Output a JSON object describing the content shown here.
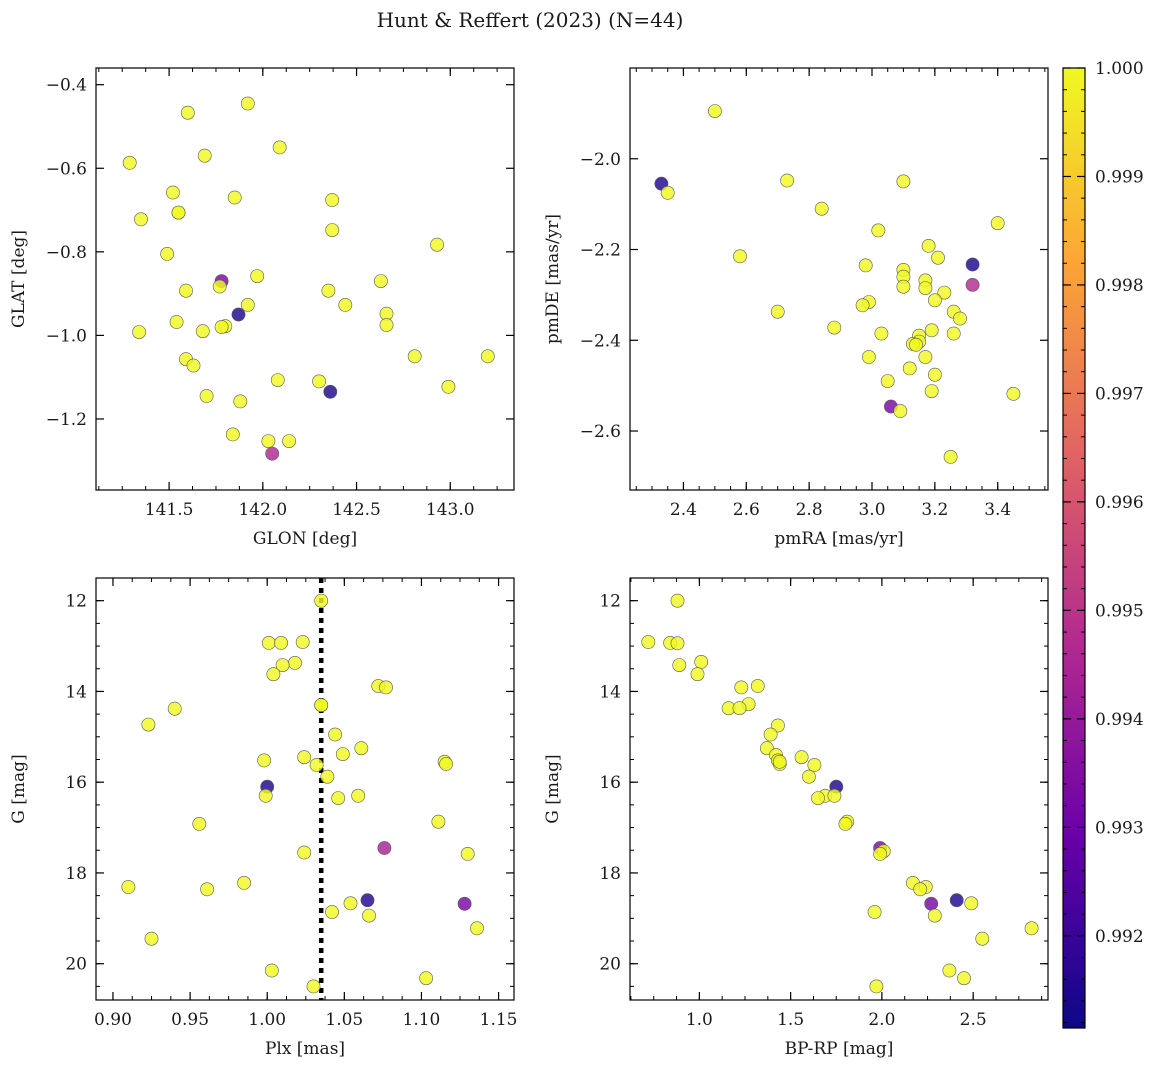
{
  "figure": {
    "title": "Hunt & Reffert (2023) (N=44)"
  },
  "colorbar": {
    "min": 0.99115,
    "max": 1.0,
    "ticks": [
      "0.992",
      "0.993",
      "0.994",
      "0.995",
      "0.996",
      "0.997",
      "0.998",
      "0.999",
      "1.000"
    ],
    "tick_values": [
      0.992,
      0.993,
      0.994,
      0.995,
      0.996,
      0.997,
      0.998,
      0.999,
      1.0
    ],
    "colormap": "plasma",
    "colors": [
      "#0d0887",
      "#6a00a8",
      "#b12a90",
      "#e16462",
      "#fca636",
      "#f0f921"
    ]
  },
  "chart_data": [
    {
      "type": "scatter",
      "xlabel": "GLON [deg]",
      "ylabel": "GLAT [deg]",
      "xlim": [
        141.11,
        143.34
      ],
      "ylim": [
        -1.37,
        -0.36
      ],
      "xticks": [
        141.5,
        142.0,
        142.5,
        143.0
      ],
      "xtick_labels": [
        "141.5",
        "142.0",
        "142.5",
        "143.0"
      ],
      "yticks": [
        -0.4,
        -0.6,
        -0.8,
        -1.0,
        -1.2
      ],
      "ytick_labels": [
        "−0.4",
        "−0.6",
        "−0.8",
        "−1.0",
        "−1.2"
      ],
      "points": [
        [
          141.92,
          -0.445,
          1.0
        ],
        [
          141.6,
          -0.467,
          1.0
        ],
        [
          142.09,
          -0.55,
          1.0
        ],
        [
          141.69,
          -0.57,
          1.0
        ],
        [
          141.29,
          -0.587,
          1.0
        ],
        [
          141.52,
          -0.658,
          1.0
        ],
        [
          141.85,
          -0.67,
          1.0
        ],
        [
          142.37,
          -0.676,
          1.0
        ],
        [
          141.55,
          -0.706,
          1.0
        ],
        [
          141.55,
          -0.706,
          1.0
        ],
        [
          141.35,
          -0.722,
          1.0
        ],
        [
          142.37,
          -0.748,
          1.0
        ],
        [
          141.49,
          -0.805,
          1.0
        ],
        [
          142.93,
          -0.783,
          1.0
        ],
        [
          141.97,
          -0.858,
          1.0
        ],
        [
          142.63,
          -0.87,
          1.0
        ],
        [
          141.78,
          -0.87,
          0.9933
        ],
        [
          141.77,
          -0.883,
          1.0
        ],
        [
          141.59,
          -0.893,
          1.0
        ],
        [
          142.35,
          -0.893,
          1.0
        ],
        [
          141.92,
          -0.927,
          1.0
        ],
        [
          142.44,
          -0.927,
          1.0
        ],
        [
          142.66,
          -0.948,
          1.0
        ],
        [
          141.87,
          -0.95,
          0.9915
        ],
        [
          141.54,
          -0.968,
          1.0
        ],
        [
          142.66,
          -0.975,
          1.0
        ],
        [
          141.8,
          -0.978,
          1.0
        ],
        [
          141.78,
          -0.98,
          1.0
        ],
        [
          141.68,
          -0.99,
          1.0
        ],
        [
          141.34,
          -0.992,
          1.0
        ],
        [
          141.59,
          -1.057,
          1.0
        ],
        [
          142.81,
          -1.05,
          1.0
        ],
        [
          143.2,
          -1.05,
          1.0
        ],
        [
          141.63,
          -1.072,
          1.0
        ],
        [
          142.08,
          -1.107,
          1.0
        ],
        [
          142.3,
          -1.11,
          1.0
        ],
        [
          142.99,
          -1.123,
          1.0
        ],
        [
          142.36,
          -1.135,
          0.9915
        ],
        [
          141.7,
          -1.145,
          1.0
        ],
        [
          141.88,
          -1.158,
          1.0
        ],
        [
          141.84,
          -1.237,
          1.0
        ],
        [
          142.03,
          -1.253,
          1.0
        ],
        [
          142.14,
          -1.253,
          1.0
        ],
        [
          142.05,
          -1.283,
          0.9946
        ]
      ]
    },
    {
      "type": "scatter",
      "xlabel": "pmRA [mas/yr]",
      "ylabel": "pmDE [mas/yr]",
      "xlim": [
        2.23,
        3.56
      ],
      "ylim": [
        -2.73,
        -1.8
      ],
      "xticks": [
        2.4,
        2.6,
        2.8,
        3.0,
        3.2,
        3.4
      ],
      "xtick_labels": [
        "2.4",
        "2.6",
        "2.8",
        "3.0",
        "3.2",
        "3.4"
      ],
      "yticks": [
        -2.0,
        -2.2,
        -2.4,
        -2.6
      ],
      "ytick_labels": [
        "−2.0",
        "−2.2",
        "−2.4",
        "−2.6"
      ],
      "points": [
        [
          2.5,
          -1.895,
          1.0
        ],
        [
          2.33,
          -2.055,
          0.9915
        ],
        [
          2.35,
          -2.075,
          1.0
        ],
        [
          2.73,
          -2.048,
          1.0
        ],
        [
          3.1,
          -2.05,
          1.0
        ],
        [
          2.84,
          -2.11,
          1.0
        ],
        [
          3.4,
          -2.142,
          1.0
        ],
        [
          3.02,
          -2.158,
          1.0
        ],
        [
          3.18,
          -2.192,
          1.0
        ],
        [
          2.58,
          -2.215,
          1.0
        ],
        [
          3.21,
          -2.218,
          1.0
        ],
        [
          2.98,
          -2.235,
          1.0
        ],
        [
          3.32,
          -2.233,
          0.9915
        ],
        [
          3.1,
          -2.245,
          1.0
        ],
        [
          3.1,
          -2.26,
          1.0
        ],
        [
          3.17,
          -2.268,
          1.0
        ],
        [
          3.32,
          -2.278,
          0.9947
        ],
        [
          3.1,
          -2.282,
          1.0
        ],
        [
          3.17,
          -2.285,
          1.0
        ],
        [
          3.23,
          -2.295,
          1.0
        ],
        [
          3.2,
          -2.312,
          1.0
        ],
        [
          2.99,
          -2.316,
          1.0
        ],
        [
          2.97,
          -2.323,
          1.0
        ],
        [
          3.26,
          -2.337,
          1.0
        ],
        [
          2.7,
          -2.337,
          1.0
        ],
        [
          3.28,
          -2.352,
          1.0
        ],
        [
          2.88,
          -2.372,
          1.0
        ],
        [
          3.19,
          -2.378,
          1.0
        ],
        [
          3.03,
          -2.385,
          1.0
        ],
        [
          3.26,
          -2.385,
          1.0
        ],
        [
          3.15,
          -2.39,
          1.0
        ],
        [
          3.15,
          -2.403,
          1.0
        ],
        [
          3.13,
          -2.408,
          1.0
        ],
        [
          3.14,
          -2.41,
          1.0
        ],
        [
          2.99,
          -2.437,
          1.0
        ],
        [
          3.17,
          -2.437,
          1.0
        ],
        [
          3.12,
          -2.462,
          1.0
        ],
        [
          3.2,
          -2.476,
          1.0
        ],
        [
          3.05,
          -2.49,
          1.0
        ],
        [
          3.19,
          -2.512,
          1.0
        ],
        [
          3.45,
          -2.518,
          1.0
        ],
        [
          3.06,
          -2.546,
          0.9932
        ],
        [
          3.09,
          -2.556,
          1.0
        ],
        [
          3.25,
          -2.657,
          1.0
        ]
      ]
    },
    {
      "type": "scatter",
      "xlabel": "Plx [mas]",
      "ylabel": "G [mag]",
      "xlim": [
        0.889,
        1.16
      ],
      "ylim": [
        20.8,
        11.5
      ],
      "xticks": [
        0.9,
        0.95,
        1.0,
        1.05,
        1.1,
        1.15
      ],
      "xtick_labels": [
        "0.90",
        "0.95",
        "1.00",
        "1.05",
        "1.10",
        "1.15"
      ],
      "yticks": [
        12,
        14,
        16,
        18,
        20
      ],
      "ytick_labels": [
        "12",
        "14",
        "16",
        "18",
        "20"
      ],
      "vline": 1.035,
      "points": [
        [
          1.035,
          12.0,
          1.0
        ],
        [
          1.001,
          12.93,
          1.0
        ],
        [
          1.009,
          12.93,
          1.0
        ],
        [
          1.023,
          12.91,
          1.0
        ],
        [
          1.018,
          13.37,
          1.0
        ],
        [
          1.01,
          13.42,
          1.0
        ],
        [
          1.004,
          13.62,
          1.0
        ],
        [
          1.072,
          13.88,
          1.0
        ],
        [
          1.077,
          13.91,
          1.0
        ],
        [
          1.035,
          14.3,
          1.0
        ],
        [
          0.94,
          14.38,
          1.0
        ],
        [
          0.923,
          14.73,
          1.0
        ],
        [
          1.044,
          14.95,
          1.0
        ],
        [
          1.061,
          15.25,
          1.0
        ],
        [
          1.049,
          15.38,
          1.0
        ],
        [
          0.998,
          15.52,
          1.0
        ],
        [
          1.024,
          15.45,
          1.0
        ],
        [
          1.115,
          15.55,
          1.0
        ],
        [
          1.116,
          15.6,
          1.0
        ],
        [
          1.032,
          15.62,
          1.0
        ],
        [
          1.039,
          15.88,
          1.0
        ],
        [
          1.0,
          16.1,
          0.9915
        ],
        [
          0.999,
          16.3,
          1.0
        ],
        [
          1.046,
          16.35,
          1.0
        ],
        [
          1.059,
          16.3,
          1.0
        ],
        [
          1.111,
          16.87,
          1.0
        ],
        [
          0.956,
          16.92,
          1.0
        ],
        [
          1.076,
          17.45,
          0.9944
        ],
        [
          1.024,
          17.55,
          1.0
        ],
        [
          1.13,
          17.58,
          1.0
        ],
        [
          0.985,
          18.22,
          1.0
        ],
        [
          0.91,
          18.31,
          1.0
        ],
        [
          0.961,
          18.36,
          1.0
        ],
        [
          1.065,
          18.6,
          0.9915
        ],
        [
          1.128,
          18.68,
          0.9932
        ],
        [
          1.054,
          18.67,
          1.0
        ],
        [
          1.042,
          18.86,
          1.0
        ],
        [
          1.066,
          18.94,
          1.0
        ],
        [
          1.136,
          19.22,
          1.0
        ],
        [
          0.925,
          19.45,
          1.0
        ],
        [
          1.003,
          20.15,
          1.0
        ],
        [
          1.103,
          20.32,
          1.0
        ],
        [
          1.03,
          20.5,
          1.0
        ],
        [
          1.035,
          14.3,
          1.0
        ]
      ]
    },
    {
      "type": "scatter",
      "xlabel": "BP-RP [mag]",
      "ylabel": "G [mag]",
      "xlim": [
        0.62,
        2.91
      ],
      "ylim": [
        20.8,
        11.5
      ],
      "xticks": [
        1.0,
        1.5,
        2.0,
        2.5
      ],
      "xtick_labels": [
        "1.0",
        "1.5",
        "2.0",
        "2.5"
      ],
      "yticks": [
        12,
        14,
        16,
        18,
        20
      ],
      "ytick_labels": [
        "12",
        "14",
        "16",
        "18",
        "20"
      ],
      "points": [
        [
          0.88,
          12.0,
          1.0
        ],
        [
          0.72,
          12.91,
          1.0
        ],
        [
          0.84,
          12.93,
          1.0
        ],
        [
          0.88,
          12.94,
          1.0
        ],
        [
          1.01,
          13.35,
          1.0
        ],
        [
          0.89,
          13.42,
          1.0
        ],
        [
          0.99,
          13.62,
          1.0
        ],
        [
          1.23,
          13.91,
          1.0
        ],
        [
          1.32,
          13.88,
          1.0
        ],
        [
          1.27,
          14.28,
          1.0
        ],
        [
          1.16,
          14.37,
          1.0
        ],
        [
          1.22,
          14.37,
          1.0
        ],
        [
          1.43,
          14.75,
          1.0
        ],
        [
          1.39,
          14.95,
          1.0
        ],
        [
          1.37,
          15.25,
          1.0
        ],
        [
          1.42,
          15.4,
          1.0
        ],
        [
          1.56,
          15.45,
          1.0
        ],
        [
          1.43,
          15.52,
          1.0
        ],
        [
          1.44,
          15.6,
          1.0
        ],
        [
          1.63,
          15.62,
          1.0
        ],
        [
          1.6,
          15.88,
          1.0
        ],
        [
          1.75,
          16.1,
          0.9915
        ],
        [
          1.69,
          16.3,
          1.0
        ],
        [
          1.74,
          16.3,
          1.0
        ],
        [
          1.65,
          16.35,
          1.0
        ],
        [
          1.81,
          16.87,
          1.0
        ],
        [
          1.8,
          16.92,
          1.0
        ],
        [
          1.99,
          17.45,
          0.9934
        ],
        [
          2.01,
          17.52,
          1.0
        ],
        [
          1.99,
          17.58,
          1.0
        ],
        [
          2.17,
          18.22,
          1.0
        ],
        [
          2.24,
          18.31,
          1.0
        ],
        [
          2.21,
          18.36,
          1.0
        ],
        [
          2.41,
          18.6,
          0.9915
        ],
        [
          2.27,
          18.68,
          0.9932
        ],
        [
          2.49,
          18.67,
          1.0
        ],
        [
          1.96,
          18.86,
          1.0
        ],
        [
          2.29,
          18.94,
          1.0
        ],
        [
          2.82,
          19.22,
          1.0
        ],
        [
          2.55,
          19.45,
          1.0
        ],
        [
          2.37,
          20.15,
          1.0
        ],
        [
          2.45,
          20.32,
          1.0
        ],
        [
          1.97,
          20.5,
          1.0
        ],
        [
          1.44,
          15.55,
          1.0
        ]
      ]
    }
  ]
}
